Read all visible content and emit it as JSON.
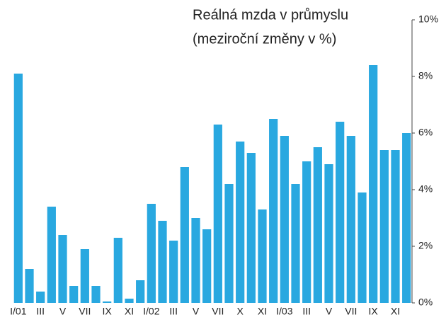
{
  "chart_data": {
    "type": "bar",
    "title": [
      "Reálná mzda v průmyslu",
      "(meziroční změny v %)"
    ],
    "categories": [
      "I/01",
      null,
      "III",
      null,
      "V",
      null,
      "VII",
      null,
      "IX",
      null,
      "XI",
      null,
      "I/02",
      null,
      "III",
      null,
      "V",
      null,
      "VII",
      null,
      "X",
      null,
      "XI",
      null,
      "I/03",
      null,
      "III",
      null,
      "V",
      null,
      "VII",
      null,
      "IX",
      null,
      "XI",
      null
    ],
    "values": [
      8.1,
      1.2,
      0.4,
      3.4,
      2.4,
      0.6,
      1.9,
      0.6,
      0.05,
      2.3,
      0.15,
      0.8,
      3.5,
      2.9,
      2.2,
      4.8,
      3.0,
      2.6,
      6.3,
      4.2,
      5.7,
      5.3,
      3.3,
      6.5,
      5.9,
      4.2,
      5.0,
      5.5,
      4.9,
      6.4,
      5.9,
      3.9,
      8.4,
      5.4,
      5.4,
      6.0
    ],
    "color": "#29a8e0",
    "ylim": [
      0,
      10
    ],
    "yticks": [
      {
        "value": 0,
        "label": "0%"
      },
      {
        "value": 2,
        "label": "2%"
      },
      {
        "value": 4,
        "label": "4%"
      },
      {
        "value": 6,
        "label": "6%"
      },
      {
        "value": 8,
        "label": "8%"
      },
      {
        "value": 10,
        "label": "10%"
      }
    ],
    "y_axis_side": "right"
  }
}
